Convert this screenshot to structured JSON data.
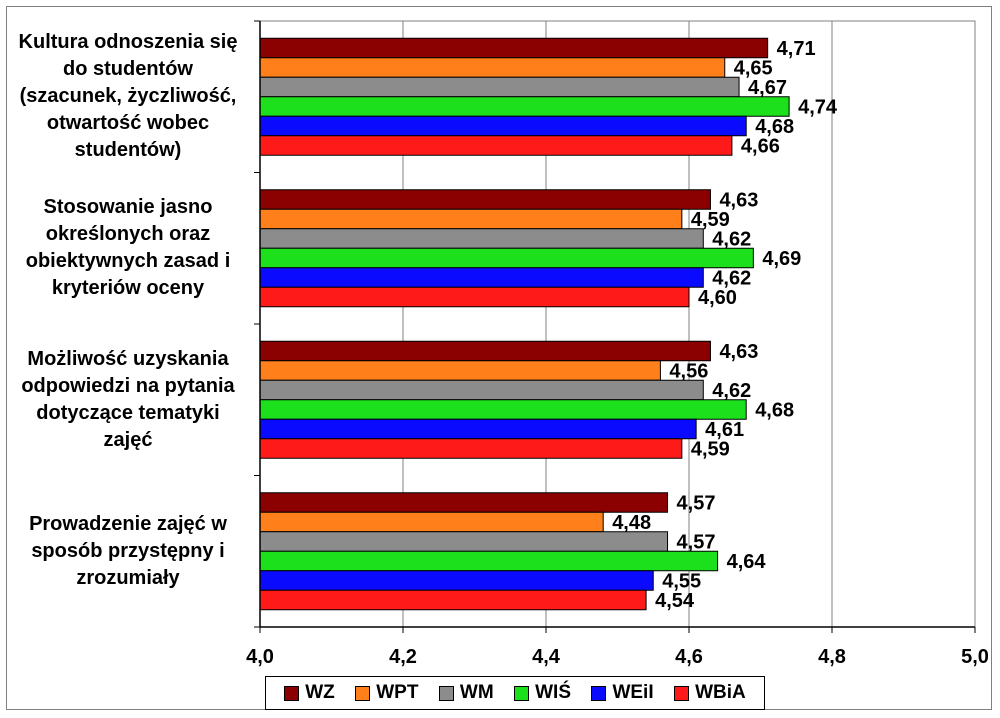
{
  "chart_data": {
    "type": "bar",
    "orientation": "horizontal",
    "categories": [
      [
        "Kultura odnoszenia się",
        "do studentów",
        "(szacunek, życzliwość,",
        "otwartość wobec",
        "studentów)"
      ],
      [
        "Stosowanie jasno",
        "określonych oraz",
        "obiektywnych zasad i",
        "kryteriów oceny"
      ],
      [
        "Możliwość uzyskania",
        "odpowiedzi na pytania",
        "dotyczące tematyki",
        "zajęć"
      ],
      [
        "Prowadzenie zajęć w",
        "sposób przystępny i",
        "zrozumiały"
      ]
    ],
    "series": [
      {
        "name": "WZ",
        "color": "#8b0000",
        "values": [
          4.71,
          4.63,
          4.63,
          4.57
        ],
        "labels": [
          "4,71",
          "4,63",
          "4,63",
          "4,57"
        ]
      },
      {
        "name": "WPT",
        "color": "#ff7f1a",
        "values": [
          4.65,
          4.59,
          4.56,
          4.48
        ],
        "labels": [
          "4,65",
          "4,59",
          "4,56",
          "4,48"
        ]
      },
      {
        "name": "WM",
        "color": "#8c8c8c",
        "values": [
          4.67,
          4.62,
          4.62,
          4.57
        ],
        "labels": [
          "4,67",
          "4,62",
          "4,62",
          "4,57"
        ]
      },
      {
        "name": "WIŚ",
        "color": "#1ce01c",
        "values": [
          4.74,
          4.69,
          4.68,
          4.64
        ],
        "labels": [
          "4,74",
          "4,69",
          "4,68",
          "4,64"
        ]
      },
      {
        "name": "WEiI",
        "color": "#0a0aff",
        "values": [
          4.68,
          4.62,
          4.61,
          4.55
        ],
        "labels": [
          "4,68",
          "4,62",
          "4,61",
          "4,55"
        ]
      },
      {
        "name": "WBiA",
        "color": "#ff1a1a",
        "values": [
          4.66,
          4.6,
          4.59,
          4.54
        ],
        "labels": [
          "4,66",
          "4,60",
          "4,59",
          "4,54"
        ]
      }
    ],
    "xlim": [
      4.0,
      5.0
    ],
    "xticks": [
      4.0,
      4.2,
      4.4,
      4.6,
      4.8,
      5.0
    ],
    "xtick_labels": [
      "4,0",
      "4,2",
      "4,4",
      "4,6",
      "4,8",
      "5,0"
    ],
    "grid": true,
    "legend_position": "bottom"
  }
}
